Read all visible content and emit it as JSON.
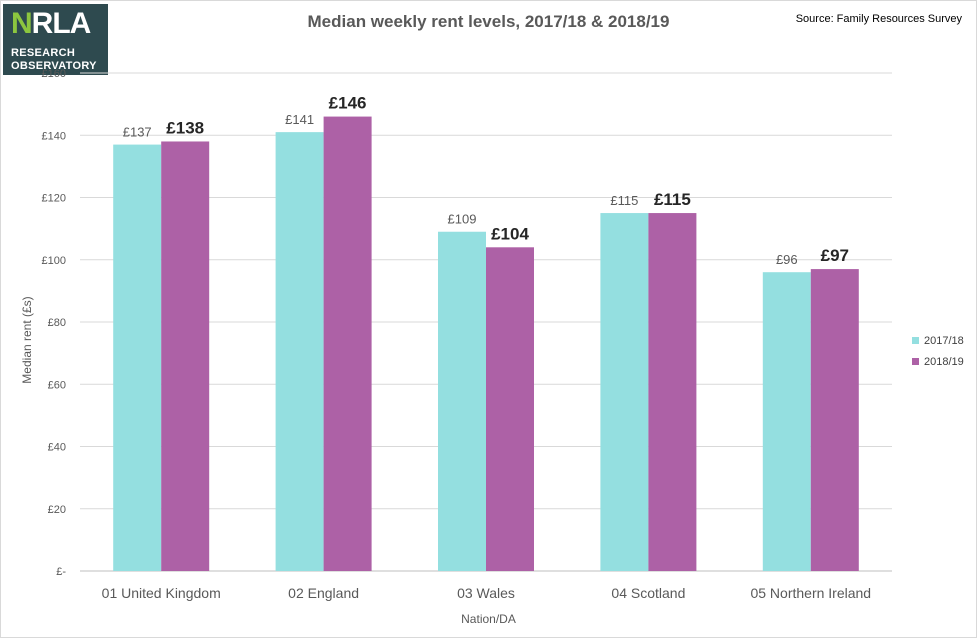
{
  "logo": {
    "mark_n": "N",
    "mark_rest": "RLA",
    "line1": "RESEARCH",
    "line2": "OBSERVATORY"
  },
  "chart_data": {
    "type": "bar",
    "title": "Median weekly rent levels, 2017/18 & 2018/19",
    "source": "Source: Family Resources Survey",
    "xlabel": "Nation/DA",
    "ylabel": "Median rent (£s)",
    "categories": [
      "01 United Kingdom",
      "02 England",
      "03 Wales",
      "04 Scotland",
      "05 Northern Ireland"
    ],
    "series": [
      {
        "name": "2017/18",
        "values": [
          137,
          141,
          109,
          115,
          96
        ],
        "labels": [
          "£137",
          "£141",
          "£109",
          "£115",
          "£96"
        ],
        "color": "#94dfe0"
      },
      {
        "name": "2018/19",
        "values": [
          138,
          146,
          104,
          115,
          97
        ],
        "labels": [
          "£138",
          "£146",
          "£104",
          "£115",
          "£97"
        ],
        "color": "#ad61a6"
      }
    ],
    "ylim": [
      0,
      160
    ],
    "yticks": [
      0,
      20,
      40,
      60,
      80,
      100,
      120,
      140,
      160
    ],
    "ytick_labels": [
      "£-",
      "£20",
      "£40",
      "£60",
      "£80",
      "£100",
      "£120",
      "£140",
      "£160"
    ],
    "grid": true,
    "legend": "right"
  }
}
